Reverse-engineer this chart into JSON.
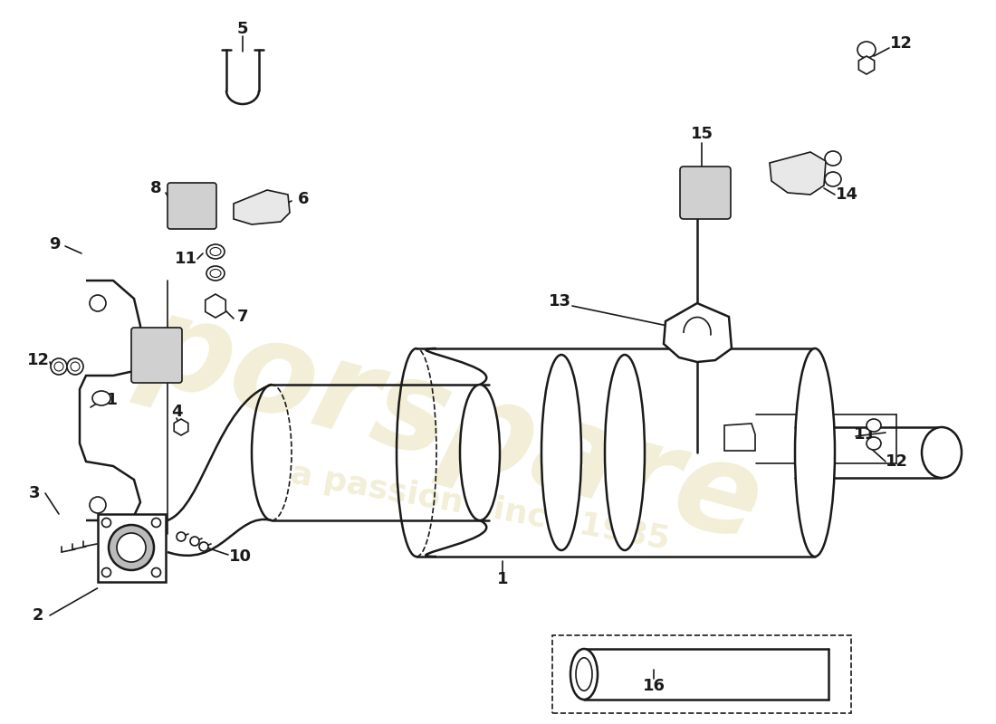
{
  "background_color": "#ffffff",
  "line_color": "#1a1a1a",
  "watermark_text1": "porspare",
  "watermark_text2": "a passion since 1985",
  "watermark_color": "#d4c87a",
  "watermark_alpha": 0.3,
  "lw_main": 1.8,
  "lw_thin": 1.2,
  "lw_label": 1.1
}
